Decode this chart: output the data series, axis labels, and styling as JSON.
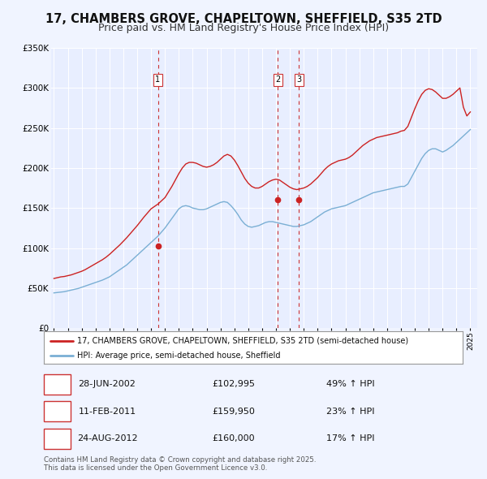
{
  "title": "17, CHAMBERS GROVE, CHAPELTOWN, SHEFFIELD, S35 2TD",
  "subtitle": "Price paid vs. HM Land Registry's House Price Index (HPI)",
  "title_fontsize": 10.5,
  "subtitle_fontsize": 9,
  "bg_color": "#f0f4ff",
  "plot_bg_color": "#e8eeff",
  "grid_color": "#d0d8f0",
  "ylim": [
    0,
    350000
  ],
  "yticks": [
    0,
    50000,
    100000,
    150000,
    200000,
    250000,
    300000,
    350000
  ],
  "ytick_labels": [
    "£0",
    "£50K",
    "£100K",
    "£150K",
    "£200K",
    "£250K",
    "£300K",
    "£350K"
  ],
  "red_line_label": "17, CHAMBERS GROVE, CHAPELTOWN, SHEFFIELD, S35 2TD (semi-detached house)",
  "blue_line_label": "HPI: Average price, semi-detached house, Sheffield",
  "transactions": [
    {
      "num": 1,
      "date": "28-JUN-2002",
      "price": 102995,
      "pct": "49%",
      "x_year": 2002.49
    },
    {
      "num": 2,
      "date": "11-FEB-2011",
      "price": 159950,
      "pct": "23%",
      "x_year": 2011.12
    },
    {
      "num": 3,
      "date": "24-AUG-2012",
      "price": 160000,
      "pct": "17%",
      "x_year": 2012.65
    }
  ],
  "footer_line1": "Contains HM Land Registry data © Crown copyright and database right 2025.",
  "footer_line2": "This data is licensed under the Open Government Licence v3.0.",
  "hpi_x": [
    1995.0,
    1995.25,
    1995.5,
    1995.75,
    1996.0,
    1996.25,
    1996.5,
    1996.75,
    1997.0,
    1997.25,
    1997.5,
    1997.75,
    1998.0,
    1998.25,
    1998.5,
    1998.75,
    1999.0,
    1999.25,
    1999.5,
    1999.75,
    2000.0,
    2000.25,
    2000.5,
    2000.75,
    2001.0,
    2001.25,
    2001.5,
    2001.75,
    2002.0,
    2002.25,
    2002.5,
    2002.75,
    2003.0,
    2003.25,
    2003.5,
    2003.75,
    2004.0,
    2004.25,
    2004.5,
    2004.75,
    2005.0,
    2005.25,
    2005.5,
    2005.75,
    2006.0,
    2006.25,
    2006.5,
    2006.75,
    2007.0,
    2007.25,
    2007.5,
    2007.75,
    2008.0,
    2008.25,
    2008.5,
    2008.75,
    2009.0,
    2009.25,
    2009.5,
    2009.75,
    2010.0,
    2010.25,
    2010.5,
    2010.75,
    2011.0,
    2011.25,
    2011.5,
    2011.75,
    2012.0,
    2012.25,
    2012.5,
    2012.75,
    2013.0,
    2013.25,
    2013.5,
    2013.75,
    2014.0,
    2014.25,
    2014.5,
    2014.75,
    2015.0,
    2015.25,
    2015.5,
    2015.75,
    2016.0,
    2016.25,
    2016.5,
    2016.75,
    2017.0,
    2017.25,
    2017.5,
    2017.75,
    2018.0,
    2018.25,
    2018.5,
    2018.75,
    2019.0,
    2019.25,
    2019.5,
    2019.75,
    2020.0,
    2020.25,
    2020.5,
    2020.75,
    2021.0,
    2021.25,
    2021.5,
    2021.75,
    2022.0,
    2022.25,
    2022.5,
    2022.75,
    2023.0,
    2023.25,
    2023.5,
    2023.75,
    2024.0,
    2024.25,
    2024.5,
    2024.75,
    2025.0
  ],
  "hpi_y": [
    44000,
    44500,
    45000,
    45500,
    46500,
    47500,
    48500,
    49500,
    51000,
    52500,
    54000,
    55500,
    57000,
    58500,
    60000,
    62000,
    64000,
    67000,
    70000,
    73000,
    76000,
    79000,
    83000,
    87000,
    91000,
    95000,
    99000,
    103000,
    107000,
    111000,
    115000,
    120000,
    125000,
    131000,
    137000,
    143000,
    149000,
    152000,
    153000,
    152000,
    150000,
    149000,
    148000,
    148000,
    149000,
    151000,
    153000,
    155000,
    157000,
    158000,
    157000,
    153000,
    148000,
    142000,
    135000,
    130000,
    127000,
    126000,
    127000,
    128000,
    130000,
    132000,
    133000,
    133000,
    132000,
    131000,
    130000,
    129000,
    128000,
    127000,
    127000,
    128000,
    129000,
    131000,
    133000,
    136000,
    139000,
    142000,
    145000,
    147000,
    149000,
    150000,
    151000,
    152000,
    153000,
    155000,
    157000,
    159000,
    161000,
    163000,
    165000,
    167000,
    169000,
    170000,
    171000,
    172000,
    173000,
    174000,
    175000,
    176000,
    177000,
    177000,
    180000,
    188000,
    196000,
    204000,
    212000,
    218000,
    222000,
    224000,
    224000,
    222000,
    220000,
    222000,
    225000,
    228000,
    232000,
    236000,
    240000,
    244000,
    248000
  ],
  "red_x": [
    1995.0,
    1995.25,
    1995.5,
    1995.75,
    1996.0,
    1996.25,
    1996.5,
    1996.75,
    1997.0,
    1997.25,
    1997.5,
    1997.75,
    1998.0,
    1998.25,
    1998.5,
    1998.75,
    1999.0,
    1999.25,
    1999.5,
    1999.75,
    2000.0,
    2000.25,
    2000.5,
    2000.75,
    2001.0,
    2001.25,
    2001.5,
    2001.75,
    2002.0,
    2002.25,
    2002.5,
    2002.75,
    2003.0,
    2003.25,
    2003.5,
    2003.75,
    2004.0,
    2004.25,
    2004.5,
    2004.75,
    2005.0,
    2005.25,
    2005.5,
    2005.75,
    2006.0,
    2006.25,
    2006.5,
    2006.75,
    2007.0,
    2007.25,
    2007.5,
    2007.75,
    2008.0,
    2008.25,
    2008.5,
    2008.75,
    2009.0,
    2009.25,
    2009.5,
    2009.75,
    2010.0,
    2010.25,
    2010.5,
    2010.75,
    2011.0,
    2011.25,
    2011.5,
    2011.75,
    2012.0,
    2012.25,
    2012.5,
    2012.75,
    2013.0,
    2013.25,
    2013.5,
    2013.75,
    2014.0,
    2014.25,
    2014.5,
    2014.75,
    2015.0,
    2015.25,
    2015.5,
    2015.75,
    2016.0,
    2016.25,
    2016.5,
    2016.75,
    2017.0,
    2017.25,
    2017.5,
    2017.75,
    2018.0,
    2018.25,
    2018.5,
    2018.75,
    2019.0,
    2019.25,
    2019.5,
    2019.75,
    2020.0,
    2020.25,
    2020.5,
    2020.75,
    2021.0,
    2021.25,
    2021.5,
    2021.75,
    2022.0,
    2022.25,
    2022.5,
    2022.75,
    2023.0,
    2023.25,
    2023.5,
    2023.75,
    2024.0,
    2024.25,
    2024.5,
    2024.75,
    2025.0
  ],
  "red_y": [
    62000,
    63000,
    64000,
    64500,
    65500,
    66500,
    68000,
    69500,
    71000,
    73000,
    75500,
    78000,
    80500,
    83000,
    85500,
    88500,
    92000,
    96000,
    100000,
    104000,
    108500,
    113000,
    118000,
    123000,
    128000,
    133500,
    139000,
    144000,
    149000,
    152000,
    155000,
    159000,
    163000,
    170000,
    177000,
    185000,
    193000,
    200000,
    205000,
    207000,
    207000,
    206000,
    204000,
    202000,
    201000,
    202000,
    204000,
    207000,
    211000,
    215000,
    217000,
    215000,
    210000,
    203000,
    195000,
    187000,
    181000,
    177000,
    175000,
    175000,
    177000,
    180000,
    183000,
    185000,
    186000,
    185000,
    182000,
    179000,
    176000,
    174000,
    173000,
    174000,
    175000,
    177000,
    180000,
    184000,
    188000,
    193000,
    198000,
    202000,
    205000,
    207000,
    209000,
    210000,
    211000,
    213000,
    216000,
    220000,
    224000,
    228000,
    231000,
    234000,
    236000,
    238000,
    239000,
    240000,
    241000,
    242000,
    243000,
    244000,
    246000,
    247000,
    252000,
    263000,
    274000,
    284000,
    292000,
    297000,
    299000,
    298000,
    295000,
    291000,
    287000,
    287000,
    289000,
    292000,
    296000,
    300000,
    276000,
    265000,
    270000
  ],
  "xlim_left": 1994.8,
  "xlim_right": 2025.5
}
